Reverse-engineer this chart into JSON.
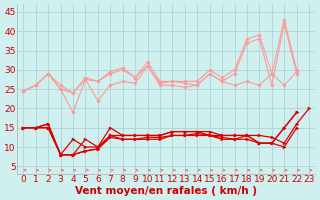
{
  "background_color": "#d0f0f0",
  "grid_color": "#b0d8d8",
  "xlabel": "Vent moyen/en rafales ( km/h )",
  "xlim": [
    -0.5,
    23.5
  ],
  "ylim": [
    3,
    47
  ],
  "yticks": [
    5,
    10,
    15,
    20,
    25,
    30,
    35,
    40,
    45
  ],
  "xticks": [
    0,
    1,
    2,
    3,
    4,
    5,
    6,
    7,
    8,
    9,
    10,
    11,
    12,
    13,
    14,
    15,
    16,
    17,
    18,
    19,
    20,
    21,
    22,
    23
  ],
  "series_light": [
    {
      "x": [
        0,
        1,
        2,
        3,
        4,
        5,
        6,
        7,
        8,
        9,
        10,
        11,
        12,
        13,
        14,
        15,
        16,
        17,
        18,
        19,
        20,
        21,
        22
      ],
      "y": [
        24.5,
        26,
        29,
        25,
        19,
        27.5,
        22,
        26,
        27,
        26.5,
        31,
        26,
        26,
        25.5,
        26,
        29,
        27,
        26,
        27,
        26,
        29,
        26,
        29.5
      ]
    },
    {
      "x": [
        0,
        1,
        2,
        3,
        4,
        5,
        6,
        7,
        8,
        9,
        10,
        11,
        12,
        13,
        14,
        15,
        16,
        17,
        18,
        19,
        20,
        21,
        22
      ],
      "y": [
        24.5,
        26,
        29,
        25,
        24,
        27.5,
        27,
        29,
        30,
        28,
        31,
        26.5,
        27,
        26.5,
        26,
        29,
        27,
        29,
        37,
        38,
        26,
        42,
        29
      ]
    },
    {
      "x": [
        0,
        1,
        2,
        3,
        4,
        5,
        6,
        7,
        8,
        9,
        10,
        11,
        12,
        13,
        14,
        15,
        16,
        17,
        18,
        19,
        20,
        21,
        22
      ],
      "y": [
        24.5,
        26,
        29,
        26,
        24,
        28,
        27,
        29.5,
        30.5,
        28,
        32,
        27,
        27,
        27,
        27,
        30,
        28,
        30,
        38,
        39,
        29,
        43,
        30
      ]
    }
  ],
  "series_dark": [
    {
      "x": [
        0,
        1,
        2,
        3,
        4,
        5,
        6,
        7,
        8,
        9,
        10,
        11,
        12,
        13,
        14,
        15,
        16,
        17,
        18,
        19,
        20,
        21,
        22,
        23
      ],
      "y": [
        15,
        15,
        16,
        8,
        8,
        12,
        10,
        15,
        13,
        13,
        13,
        13,
        14,
        14,
        14,
        13,
        13,
        13,
        13,
        13,
        12.5,
        11,
        16,
        20
      ]
    },
    {
      "x": [
        0,
        1,
        2,
        3,
        4,
        5,
        6,
        7,
        8,
        9,
        10,
        11,
        12,
        13,
        14,
        15,
        16,
        17,
        18,
        19,
        20,
        21,
        22
      ],
      "y": [
        15,
        15,
        16,
        8,
        12,
        10,
        10,
        13,
        13,
        13,
        13,
        13,
        14,
        14,
        14,
        14,
        13,
        13,
        13,
        11,
        11,
        15,
        19
      ]
    },
    {
      "x": [
        0,
        1,
        2,
        3,
        4,
        5,
        6,
        7,
        8,
        9,
        10,
        11,
        12,
        13,
        14,
        15,
        16,
        17,
        18,
        19,
        20,
        21,
        22
      ],
      "y": [
        15,
        15,
        15,
        8,
        8,
        9,
        9.5,
        13,
        12,
        12,
        12.5,
        12.5,
        13,
        13,
        13.5,
        13,
        12.5,
        12,
        13,
        11,
        11,
        15,
        19
      ]
    },
    {
      "x": [
        0,
        1,
        2,
        3,
        4,
        5,
        6,
        7,
        8,
        9,
        10,
        11,
        12,
        13,
        14,
        15,
        16,
        17,
        18,
        19,
        20,
        21,
        22
      ],
      "y": [
        15,
        15,
        15,
        8,
        8,
        9,
        9.5,
        12.5,
        12,
        12,
        12,
        12,
        13,
        13,
        13,
        13,
        12,
        12,
        12,
        11,
        11,
        10,
        15
      ]
    }
  ],
  "light_color": "#ff9999",
  "dark_color": "#dd0000",
  "arrow_color": "#ff5555",
  "xlabel_color": "#cc0000",
  "xlabel_fontsize": 7.5,
  "tick_fontsize": 6.5,
  "tick_color": "#cc0000"
}
